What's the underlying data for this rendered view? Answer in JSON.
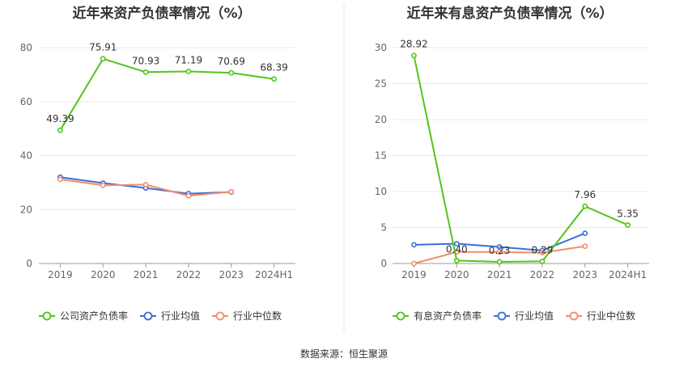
{
  "footer": "数据来源：恒生聚源",
  "chart_data": [
    {
      "type": "line",
      "title": "近年来资产负债率情况（%）",
      "categories": [
        "2019",
        "2020",
        "2021",
        "2022",
        "2023",
        "2024H1"
      ],
      "ylim": [
        0,
        80
      ],
      "yticks": [
        "0",
        "20",
        "40",
        "60",
        "80"
      ],
      "grid": true,
      "legend_position": "bottom",
      "series": [
        {
          "name": "公司资产负债率",
          "color": "#52c41a",
          "values": [
            49.39,
            75.91,
            70.93,
            71.19,
            70.69,
            68.39
          ],
          "labels": [
            "49.39",
            "75.91",
            "70.93",
            "71.19",
            "70.69",
            "68.39"
          ]
        },
        {
          "name": "行业均值",
          "color": "#3a6fd8",
          "values": [
            32.0,
            29.8,
            28.0,
            25.9,
            26.5,
            null
          ]
        },
        {
          "name": "行业中位数",
          "color": "#f28c6a",
          "values": [
            31.2,
            29.0,
            29.2,
            25.1,
            26.6,
            null
          ]
        }
      ]
    },
    {
      "type": "line",
      "title": "近年来有息资产负债率情况（%）",
      "categories": [
        "2019",
        "2020",
        "2021",
        "2022",
        "2023",
        "2024H1"
      ],
      "ylim": [
        0,
        30
      ],
      "yticks": [
        "0",
        "5",
        "10",
        "15",
        "20",
        "25",
        "30"
      ],
      "grid": true,
      "legend_position": "bottom",
      "series": [
        {
          "name": "有息资产负债率",
          "color": "#52c41a",
          "values": [
            28.92,
            0.4,
            0.23,
            0.29,
            7.96,
            5.35
          ],
          "labels": [
            "28.92",
            "0.40",
            "0.23",
            "0.29",
            "7.96",
            "5.35"
          ]
        },
        {
          "name": "行业均值",
          "color": "#3a6fd8",
          "values": [
            2.6,
            2.75,
            2.3,
            1.8,
            4.2,
            null
          ]
        },
        {
          "name": "行业中位数",
          "color": "#f28c6a",
          "values": [
            0.0,
            1.6,
            1.6,
            1.5,
            2.4,
            null
          ]
        }
      ]
    }
  ]
}
